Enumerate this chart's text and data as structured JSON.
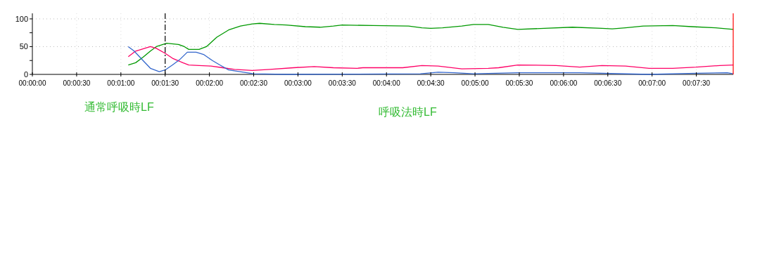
{
  "chart_data": {
    "type": "line",
    "xlim": [
      0,
      475
    ],
    "ylim": [
      0,
      110
    ],
    "xticks": [
      {
        "value": 0,
        "label": "00:00:00"
      },
      {
        "value": 30,
        "label": "00:00:30"
      },
      {
        "value": 60,
        "label": "00:01:00"
      },
      {
        "value": 90,
        "label": "00:01:30"
      },
      {
        "value": 120,
        "label": "00:02:00"
      },
      {
        "value": 150,
        "label": "00:02:30"
      },
      {
        "value": 180,
        "label": "00:03:00"
      },
      {
        "value": 210,
        "label": "00:03:30"
      },
      {
        "value": 240,
        "label": "00:04:00"
      },
      {
        "value": 270,
        "label": "00:04:30"
      },
      {
        "value": 300,
        "label": "00:05:00"
      },
      {
        "value": 330,
        "label": "00:05:30"
      },
      {
        "value": 360,
        "label": "00:06:00"
      },
      {
        "value": 390,
        "label": "00:06:30"
      },
      {
        "value": 420,
        "label": "00:07:00"
      },
      {
        "value": 450,
        "label": "00:07:30"
      }
    ],
    "yticks": [
      0,
      {
        "value": 25,
        "label": null
      },
      50,
      {
        "value": 75,
        "label": null
      },
      100
    ],
    "grid": true,
    "marker": "none",
    "line_style": "solid",
    "series": [
      {
        "color": "#009900",
        "x": [
          65,
          70,
          75,
          80,
          84,
          91,
          99,
          103,
          106,
          113,
          118,
          125,
          133,
          141,
          149,
          154,
          164,
          172,
          185,
          195,
          204,
          210,
          231,
          255,
          264,
          270,
          278,
          291,
          299,
          309,
          319,
          329,
          347,
          366,
          386,
          393,
          402,
          414,
          434,
          447,
          463,
          475
        ],
        "values": [
          17,
          21,
          31,
          42,
          50,
          56,
          54,
          50,
          45,
          45,
          50,
          67,
          80,
          87,
          91,
          92,
          90,
          89,
          86,
          85,
          87,
          89,
          88,
          87,
          84,
          83,
          84,
          87,
          90,
          90,
          85,
          81,
          83,
          85,
          83,
          82,
          84,
          87,
          88,
          86,
          84,
          81
        ]
      },
      {
        "color": "#ff0066",
        "x": [
          65,
          70,
          75,
          80,
          84,
          90,
          95,
          102,
          106,
          113,
          121,
          129,
          137,
          149,
          161,
          177,
          191,
          204,
          220,
          224,
          251,
          264,
          275,
          291,
          309,
          316,
          329,
          355,
          371,
          386,
          402,
          418,
          434,
          450,
          466,
          475
        ],
        "values": [
          32,
          42,
          46,
          50,
          47,
          38,
          29,
          21,
          17,
          16,
          15,
          12,
          9,
          7,
          9,
          12,
          14,
          12,
          11,
          12,
          12,
          16,
          15,
          10,
          11,
          12,
          17,
          16,
          13,
          16,
          15,
          11,
          11,
          13,
          16,
          17
        ]
      },
      {
        "color": "#3366cc",
        "x": [
          65,
          69,
          75,
          80,
          86,
          90,
          95,
          100,
          105,
          111,
          116,
          122,
          127,
          133,
          143,
          150,
          172,
          263,
          275,
          286,
          299,
          329,
          371,
          418,
          450,
          471,
          475
        ],
        "values": [
          50,
          42,
          25,
          11,
          5,
          8,
          17,
          27,
          40,
          40,
          36,
          25,
          17,
          8,
          4,
          1,
          0,
          1,
          4,
          3,
          1,
          3,
          3,
          0,
          2,
          3,
          1
        ]
      }
    ],
    "ref_lines": [
      {
        "axis": "x",
        "value": 90,
        "color": "#000000",
        "line_style": "dashed"
      },
      {
        "axis": "x",
        "value": 475,
        "color": "#ff0000",
        "line_style": "solid"
      }
    ],
    "annotations": [
      "通常呼吸時LF",
      "呼吸法時LF"
    ]
  }
}
